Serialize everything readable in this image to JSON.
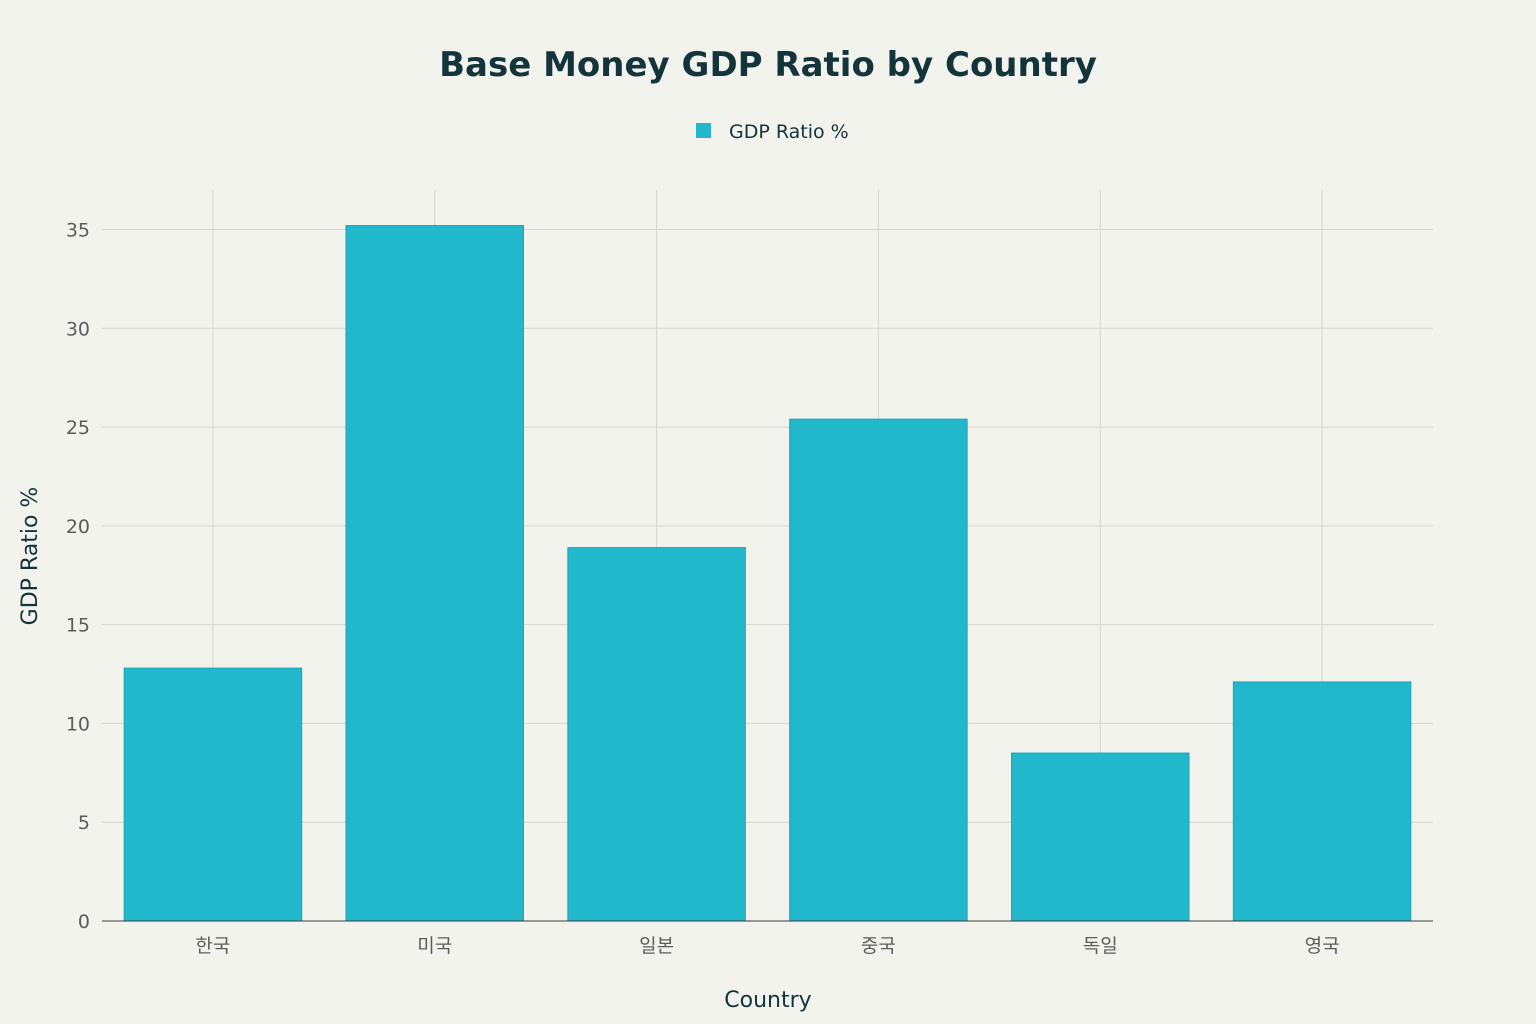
{
  "chart_data": {
    "type": "bar",
    "title": "Base Money GDP Ratio by Country",
    "xlabel": "Country",
    "ylabel": "GDP Ratio %",
    "categories": [
      "한국",
      "미국",
      "일본",
      "중국",
      "독일",
      "영국"
    ],
    "series": [
      {
        "name": "GDP Ratio %",
        "values": [
          12.8,
          35.2,
          18.9,
          25.4,
          8.5,
          12.1
        ],
        "color": "#22b8cc"
      }
    ],
    "ylim": [
      0,
      37
    ],
    "yticks": [
      0,
      5,
      10,
      15,
      20,
      25,
      30,
      35
    ],
    "grid": true,
    "legend_position": "top-center"
  }
}
